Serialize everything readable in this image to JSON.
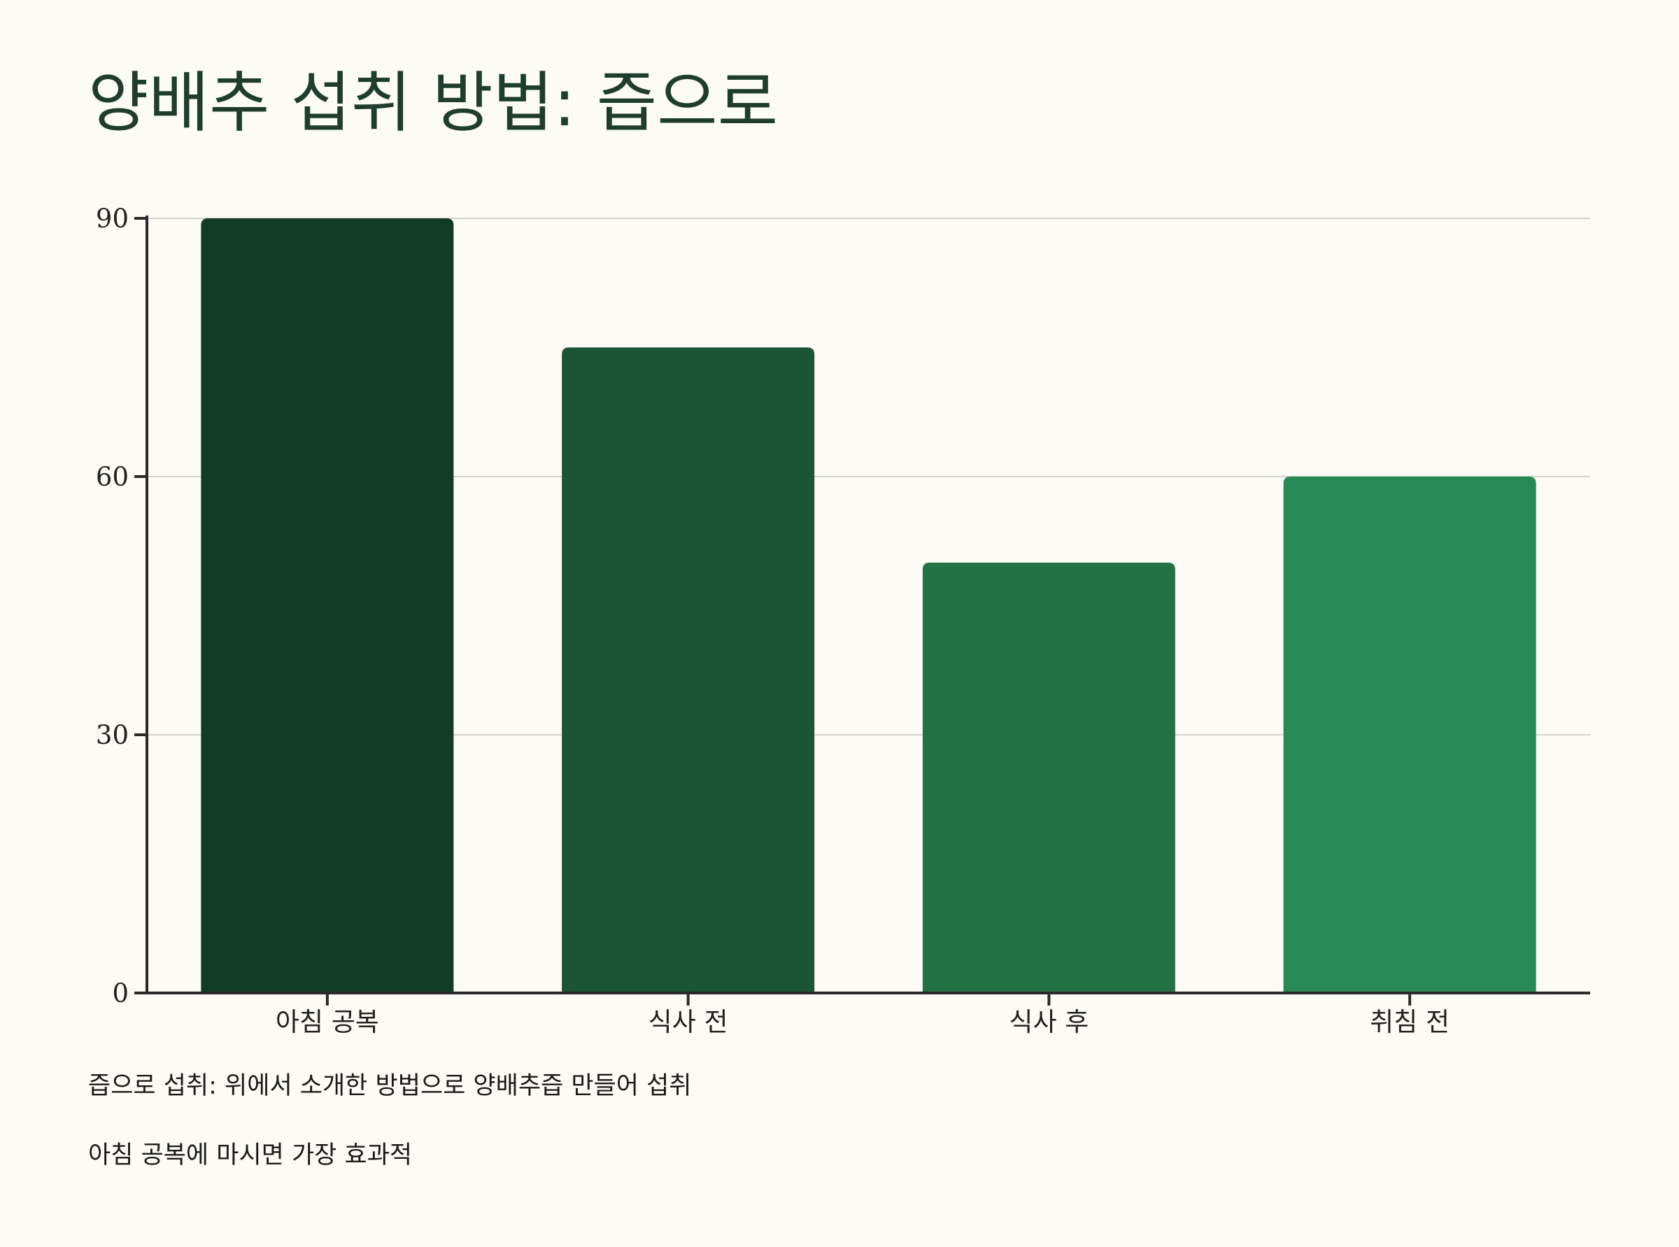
{
  "title": "양배추 섭취 방법: 즙으로",
  "chart_data": {
    "type": "bar",
    "categories": [
      "아침 공복",
      "식사 전",
      "식사 후",
      "취침 전"
    ],
    "values": [
      90,
      75,
      50,
      60
    ],
    "ylim": [
      0,
      90
    ],
    "yticks": [
      0,
      30,
      60,
      90
    ],
    "grid": true,
    "legend": "none",
    "colors": [
      "#113c27",
      "#1a5636",
      "#227246",
      "#278a54"
    ],
    "axis_color": "#2a2a2a",
    "grid_color": "#d3d3cf"
  },
  "notes": [
    "즙으로 섭취: 위에서 소개한 방법으로 양배추즙 만들어 섭취",
    "아침 공복에 마시면 가장 효과적"
  ]
}
